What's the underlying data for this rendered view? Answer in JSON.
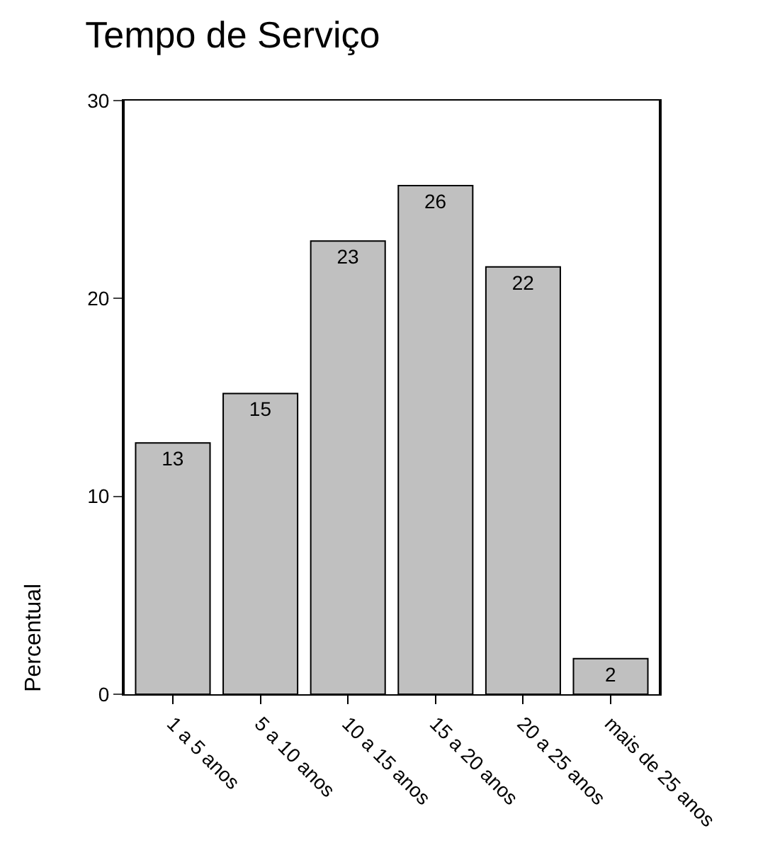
{
  "chart_data": {
    "type": "bar",
    "title": "Tempo de Serviço",
    "ylabel": "Percentual",
    "categories": [
      "1 a 5 anos",
      "5 a 10 anos",
      "10 a 15 anos",
      "15 a 20 anos",
      "20 a 25 anos",
      "mais de 25 anos"
    ],
    "values": [
      12.7,
      15.2,
      22.9,
      25.7,
      21.6,
      1.8
    ],
    "value_labels": [
      "13",
      "15",
      "23",
      "26",
      "22",
      "2"
    ],
    "color": "#c0c0c0",
    "ylim": [
      0,
      30
    ],
    "yticks": [
      0,
      10,
      20,
      30
    ],
    "grid": false,
    "legend": false
  }
}
